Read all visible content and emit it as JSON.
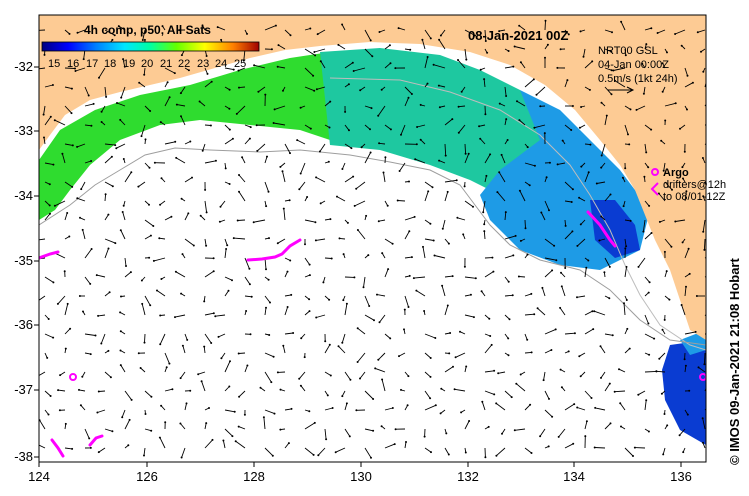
{
  "map": {
    "date_title": "08-Jan-2021 00Z",
    "colorbar": {
      "title": "4h comp, p50, All Sats",
      "tick_labels": [
        "15",
        "16",
        "17",
        "18",
        "19",
        "20",
        "21",
        "22",
        "23",
        "24",
        "25"
      ],
      "range": [
        15,
        25
      ],
      "colors": [
        "#000080",
        "#0000ff",
        "#0064ff",
        "#00c8ff",
        "#00ffc8",
        "#32ff32",
        "#96ff00",
        "#ffff00",
        "#ffa000",
        "#ff3200",
        "#a00000"
      ]
    },
    "current_info": {
      "source": "NRT00 GSL",
      "date": "04-Jan 00:00Z",
      "scale": "0.5m/s (1kt 24h)"
    },
    "argo_legend": {
      "label": "Argo",
      "drifters": "drifters@12h",
      "to": "to 08/01-12Z"
    },
    "credit": "© IMOS 09-Jan-2021 21:08 Hobart",
    "axes": {
      "lon_ticks": [
        "124",
        "126",
        "128",
        "130",
        "132",
        "134",
        "136"
      ],
      "lat_ticks": [
        "-32",
        "-33",
        "-34",
        "-35",
        "-36",
        "-37",
        "-38"
      ],
      "lon_range": [
        124,
        136.5
      ],
      "lat_range": [
        -38.1,
        -31.4
      ]
    },
    "colors": {
      "land": "#fdcb94",
      "warm_sst": "#2fdc2f",
      "mid_sst": "#1ec8a0",
      "cool_sst": "#1e9be6",
      "cold_sst": "#0a3cd2",
      "argo": "#ff00ff"
    }
  }
}
